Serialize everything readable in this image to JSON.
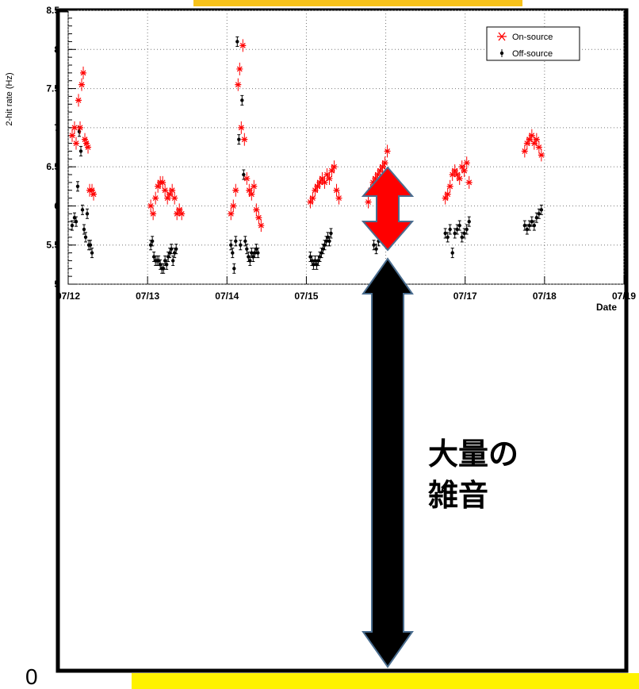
{
  "colors": {
    "on_source": "#ff0000",
    "off_source": "#000000",
    "highlight": "#fef200",
    "top_banner": "#f7c21a",
    "arrow_red": "#ff0000",
    "arrow_black": "#000000",
    "arrow_outline": "#4a6d8f"
  },
  "annotation": {
    "line1": "大量の",
    "line2": "雑音"
  },
  "zero_label": "0",
  "chart_data": {
    "type": "scatter",
    "ylabel": "2-hit rate (Hz)",
    "xlabel": "Date",
    "ylim": [
      5,
      8.5
    ],
    "yticks": [
      "5",
      "5.5",
      "6",
      "6.5",
      "7",
      "7.5",
      "8",
      "8.5"
    ],
    "yticks_values": [
      5,
      5.5,
      6,
      6.5,
      7,
      7.5,
      8,
      8.5
    ],
    "xlim": [
      0,
      6
    ],
    "xticks": [
      "07/12",
      "07/13",
      "07/14",
      "07/15",
      "07/16",
      "07/17",
      "07/18",
      "07/19"
    ],
    "xticks_values": [
      0,
      1,
      2,
      3,
      4,
      5,
      6,
      7
    ],
    "grid": true,
    "legend_position": "top-right",
    "series": [
      {
        "name": "On-source",
        "marker": "star",
        "points": [
          [
            0.05,
            6.9
          ],
          [
            0.08,
            7.0
          ],
          [
            0.1,
            6.8
          ],
          [
            0.13,
            7.35
          ],
          [
            0.15,
            7.0
          ],
          [
            0.17,
            7.55
          ],
          [
            0.19,
            7.7
          ],
          [
            0.21,
            6.85
          ],
          [
            0.23,
            6.8
          ],
          [
            0.25,
            6.75
          ],
          [
            0.27,
            6.2
          ],
          [
            0.3,
            6.2
          ],
          [
            0.32,
            6.15
          ],
          [
            1.04,
            6.0
          ],
          [
            1.07,
            5.9
          ],
          [
            1.1,
            6.1
          ],
          [
            1.13,
            6.25
          ],
          [
            1.16,
            6.3
          ],
          [
            1.19,
            6.3
          ],
          [
            1.22,
            6.2
          ],
          [
            1.25,
            6.1
          ],
          [
            1.28,
            6.15
          ],
          [
            1.31,
            6.2
          ],
          [
            1.34,
            6.1
          ],
          [
            1.37,
            5.9
          ],
          [
            1.4,
            5.95
          ],
          [
            1.43,
            5.9
          ],
          [
            2.05,
            5.9
          ],
          [
            2.08,
            6.0
          ],
          [
            2.11,
            6.2
          ],
          [
            2.14,
            7.55
          ],
          [
            2.16,
            7.75
          ],
          [
            2.18,
            7.0
          ],
          [
            2.2,
            8.05
          ],
          [
            2.22,
            6.85
          ],
          [
            2.25,
            6.35
          ],
          [
            2.28,
            6.2
          ],
          [
            2.31,
            6.15
          ],
          [
            2.34,
            6.25
          ],
          [
            2.37,
            5.95
          ],
          [
            2.4,
            5.85
          ],
          [
            2.43,
            5.75
          ],
          [
            3.05,
            6.05
          ],
          [
            3.08,
            6.1
          ],
          [
            3.11,
            6.2
          ],
          [
            3.14,
            6.25
          ],
          [
            3.17,
            6.3
          ],
          [
            3.2,
            6.35
          ],
          [
            3.23,
            6.3
          ],
          [
            3.26,
            6.4
          ],
          [
            3.29,
            6.35
          ],
          [
            3.32,
            6.45
          ],
          [
            3.35,
            6.5
          ],
          [
            3.38,
            6.2
          ],
          [
            3.41,
            6.1
          ],
          [
            3.78,
            6.05
          ],
          [
            3.81,
            6.2
          ],
          [
            3.84,
            6.3
          ],
          [
            3.87,
            6.35
          ],
          [
            3.9,
            6.4
          ],
          [
            3.93,
            6.45
          ],
          [
            3.96,
            6.5
          ],
          [
            3.99,
            6.55
          ],
          [
            4.02,
            6.7
          ],
          [
            4.05,
            6.35
          ],
          [
            4.08,
            6.3
          ],
          [
            4.75,
            6.1
          ],
          [
            4.78,
            6.15
          ],
          [
            4.81,
            6.25
          ],
          [
            4.84,
            6.4
          ],
          [
            4.87,
            6.45
          ],
          [
            4.9,
            6.4
          ],
          [
            4.93,
            6.35
          ],
          [
            4.96,
            6.5
          ],
          [
            4.99,
            6.45
          ],
          [
            5.02,
            6.55
          ],
          [
            5.05,
            6.3
          ],
          [
            5.75,
            6.7
          ],
          [
            5.78,
            6.8
          ],
          [
            5.81,
            6.85
          ],
          [
            5.84,
            6.9
          ],
          [
            5.87,
            6.8
          ],
          [
            5.9,
            6.85
          ],
          [
            5.93,
            6.75
          ],
          [
            5.96,
            6.65
          ]
        ]
      },
      {
        "name": "Off-source",
        "marker": "dot",
        "points": [
          [
            0.05,
            5.75
          ],
          [
            0.08,
            5.85
          ],
          [
            0.1,
            5.8
          ],
          [
            0.12,
            6.25
          ],
          [
            0.14,
            6.95
          ],
          [
            0.16,
            6.7
          ],
          [
            0.18,
            5.95
          ],
          [
            0.2,
            5.7
          ],
          [
            0.22,
            5.6
          ],
          [
            0.24,
            5.9
          ],
          [
            0.26,
            5.5
          ],
          [
            0.28,
            5.5
          ],
          [
            0.3,
            5.4
          ],
          [
            1.04,
            5.5
          ],
          [
            1.06,
            5.55
          ],
          [
            1.08,
            5.35
          ],
          [
            1.1,
            5.3
          ],
          [
            1.12,
            5.3
          ],
          [
            1.14,
            5.3
          ],
          [
            1.16,
            5.25
          ],
          [
            1.18,
            5.2
          ],
          [
            1.2,
            5.2
          ],
          [
            1.22,
            5.3
          ],
          [
            1.24,
            5.25
          ],
          [
            1.26,
            5.35
          ],
          [
            1.28,
            5.4
          ],
          [
            1.3,
            5.45
          ],
          [
            1.32,
            5.3
          ],
          [
            1.34,
            5.4
          ],
          [
            1.36,
            5.45
          ],
          [
            2.05,
            5.5
          ],
          [
            2.07,
            5.4
          ],
          [
            2.09,
            5.2
          ],
          [
            2.11,
            5.55
          ],
          [
            2.13,
            8.1
          ],
          [
            2.15,
            6.85
          ],
          [
            2.17,
            5.5
          ],
          [
            2.19,
            7.35
          ],
          [
            2.21,
            6.4
          ],
          [
            2.23,
            5.55
          ],
          [
            2.25,
            5.45
          ],
          [
            2.27,
            5.35
          ],
          [
            2.29,
            5.3
          ],
          [
            2.31,
            5.4
          ],
          [
            2.33,
            5.35
          ],
          [
            2.35,
            5.4
          ],
          [
            2.37,
            5.45
          ],
          [
            2.39,
            5.4
          ],
          [
            3.05,
            5.35
          ],
          [
            3.07,
            5.3
          ],
          [
            3.09,
            5.25
          ],
          [
            3.11,
            5.3
          ],
          [
            3.13,
            5.25
          ],
          [
            3.15,
            5.3
          ],
          [
            3.17,
            5.35
          ],
          [
            3.19,
            5.4
          ],
          [
            3.21,
            5.45
          ],
          [
            3.23,
            5.5
          ],
          [
            3.25,
            5.55
          ],
          [
            3.27,
            5.6
          ],
          [
            3.29,
            5.55
          ],
          [
            3.31,
            5.65
          ],
          [
            3.85,
            5.5
          ],
          [
            3.88,
            5.45
          ],
          [
            3.91,
            5.55
          ],
          [
            3.94,
            5.6
          ],
          [
            3.97,
            5.6
          ],
          [
            4.0,
            5.65
          ],
          [
            4.03,
            5.75
          ],
          [
            4.06,
            5.85
          ],
          [
            4.09,
            5.9
          ],
          [
            4.75,
            5.65
          ],
          [
            4.78,
            5.6
          ],
          [
            4.81,
            5.7
          ],
          [
            4.84,
            5.4
          ],
          [
            4.87,
            5.65
          ],
          [
            4.9,
            5.7
          ],
          [
            4.93,
            5.75
          ],
          [
            4.96,
            5.6
          ],
          [
            4.99,
            5.65
          ],
          [
            5.02,
            5.7
          ],
          [
            5.05,
            5.8
          ],
          [
            5.75,
            5.75
          ],
          [
            5.78,
            5.7
          ],
          [
            5.81,
            5.75
          ],
          [
            5.84,
            5.8
          ],
          [
            5.87,
            5.75
          ],
          [
            5.9,
            5.85
          ],
          [
            5.93,
            5.9
          ],
          [
            5.96,
            5.95
          ]
        ]
      }
    ]
  }
}
